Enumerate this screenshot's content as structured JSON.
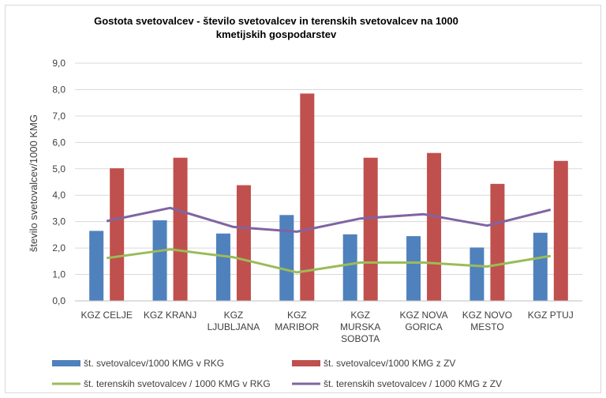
{
  "chart_data": {
    "type": "bar",
    "title_line1": "Gostota svetovalcev - število svetovalcev in terenskih svetovalcev na 1000",
    "title_line2": "kmetijskih gospodarstev",
    "ylabel": "število svetovalcev/1000 KMG",
    "ylim": [
      0,
      9
    ],
    "yticks": [
      "0,0",
      "1,0",
      "2,0",
      "3,0",
      "4,0",
      "5,0",
      "6,0",
      "7,0",
      "8,0",
      "9,0"
    ],
    "grid": true,
    "legend_position": "bottom",
    "categories": [
      [
        "KGZ CELJE"
      ],
      [
        "KGZ KRANJ"
      ],
      [
        "KGZ",
        "LJUBLJANA"
      ],
      [
        "KGZ",
        "MARIBOR"
      ],
      [
        "KGZ",
        "MURSKA",
        "SOBOTA"
      ],
      [
        "KGZ NOVA",
        "GORICA"
      ],
      [
        "KGZ NOVO",
        "MESTO"
      ],
      [
        "KGZ PTUJ"
      ]
    ],
    "series": [
      {
        "name": "št. svetovalcev/1000 KMG v RKG",
        "kind": "bar",
        "color": "#4f81bd",
        "values": [
          2.65,
          3.05,
          2.55,
          3.25,
          2.52,
          2.45,
          2.02,
          2.58
        ]
      },
      {
        "name": "št. svetovalcev/1000 KMG z ZV",
        "kind": "bar",
        "color": "#c0504d",
        "values": [
          5.02,
          5.42,
          4.38,
          7.85,
          5.42,
          5.6,
          4.43,
          5.3
        ]
      },
      {
        "name": "št. terenskih svetovalcev / 1000 KMG v RKG",
        "kind": "line",
        "color": "#9bbb59",
        "values": [
          1.62,
          1.95,
          1.65,
          1.08,
          1.45,
          1.45,
          1.3,
          1.7
        ]
      },
      {
        "name": "št. terenskih svetovalcev / 1000 KMG z ZV",
        "kind": "line",
        "color": "#8064a2",
        "values": [
          3.02,
          3.52,
          2.8,
          2.62,
          3.12,
          3.28,
          2.85,
          3.45
        ]
      }
    ]
  }
}
